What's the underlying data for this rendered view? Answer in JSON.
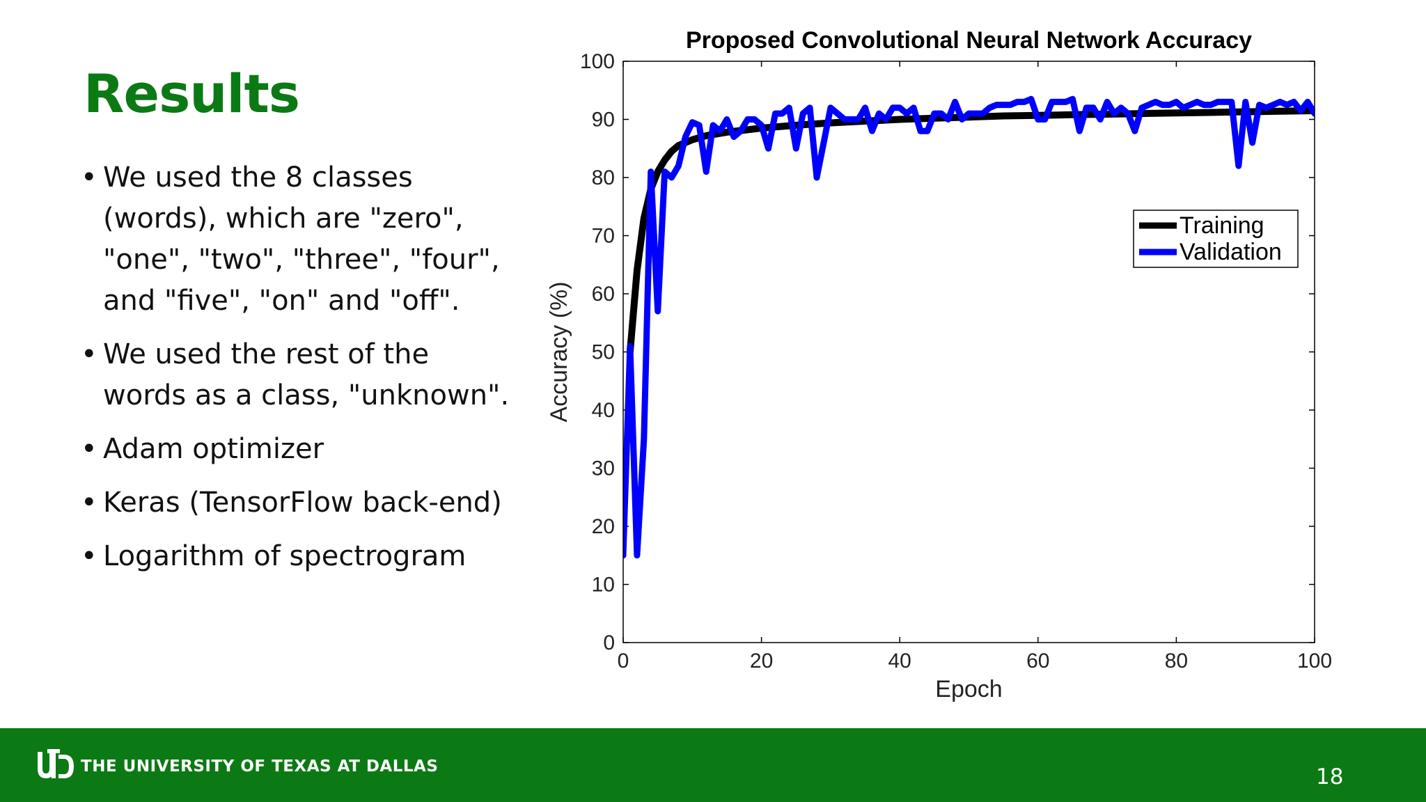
{
  "slide": {
    "title": "Results",
    "bullets": [
      "We used the 8 classes (words), which are \"zero\", \"one\", \"two\", \"three\", \"four\", and \"five\", \"on\" and \"off\".",
      "We used the rest of the words as a class, \"unknown\".",
      "Adam optimizer",
      "Keras (TensorFlow back-end)",
      "Logarithm of spectrogram"
    ],
    "bullet_symbol": "•"
  },
  "footer": {
    "university": "THE UNIVERSITY OF TEXAS AT DALLAS",
    "page_number": "18",
    "background_color": "#0b7a14"
  },
  "chart_data": {
    "type": "line",
    "title": "Proposed Convolutional Neural Network Accuracy",
    "xlabel": "Epoch",
    "ylabel": "Accuracy (%)",
    "xlim": [
      0,
      100
    ],
    "ylim": [
      0,
      100
    ],
    "xticks": [
      0,
      20,
      40,
      60,
      80,
      100
    ],
    "yticks": [
      0,
      10,
      20,
      30,
      40,
      50,
      60,
      70,
      80,
      90,
      100
    ],
    "grid": false,
    "legend_position": "upper-right",
    "series": [
      {
        "name": "Training",
        "color": "#000000",
        "x": [
          1,
          1.5,
          2,
          3,
          4,
          5,
          6,
          7,
          8,
          10,
          12,
          15,
          20,
          25,
          30,
          35,
          40,
          45,
          50,
          55,
          60,
          65,
          70,
          75,
          80,
          85,
          90,
          95,
          100
        ],
        "y": [
          50,
          57,
          64,
          73,
          78,
          81,
          83,
          84.5,
          85.5,
          86.5,
          87.2,
          87.8,
          88.5,
          89,
          89.4,
          89.7,
          90,
          90.2,
          90.4,
          90.6,
          90.7,
          90.8,
          90.9,
          91,
          91.1,
          91.2,
          91.3,
          91.4,
          91.5
        ]
      },
      {
        "name": "Validation",
        "color": "#0000ff",
        "x": [
          0,
          1,
          2,
          3,
          4,
          5,
          6,
          7,
          8,
          9,
          10,
          11,
          12,
          13,
          14,
          15,
          16,
          17,
          18,
          19,
          20,
          21,
          22,
          23,
          24,
          25,
          26,
          27,
          28,
          29,
          30,
          31,
          32,
          33,
          34,
          35,
          36,
          37,
          38,
          39,
          40,
          41,
          42,
          43,
          44,
          45,
          46,
          47,
          48,
          49,
          50,
          51,
          52,
          53,
          54,
          55,
          56,
          57,
          58,
          59,
          60,
          61,
          62,
          63,
          64,
          65,
          66,
          67,
          68,
          69,
          70,
          71,
          72,
          73,
          74,
          75,
          76,
          77,
          78,
          79,
          80,
          81,
          82,
          83,
          84,
          85,
          86,
          87,
          88,
          89,
          90,
          91,
          92,
          93,
          94,
          95,
          96,
          97,
          98,
          99,
          100
        ],
        "y": [
          15,
          51,
          15,
          35,
          81,
          57,
          81,
          80,
          82,
          87,
          89.5,
          89,
          81,
          89,
          88,
          90,
          87,
          88,
          90,
          90,
          89,
          85,
          91,
          91,
          92,
          85,
          91,
          92,
          80,
          86,
          92,
          91,
          90,
          90,
          90,
          92,
          88,
          91,
          90,
          92,
          92,
          91,
          92,
          88,
          88,
          91,
          91,
          90,
          93,
          90,
          91,
          91,
          91,
          92,
          92.5,
          92.5,
          92.5,
          93,
          93,
          93.5,
          90,
          90,
          93,
          93,
          93,
          93.5,
          88,
          92,
          92,
          90,
          93,
          91,
          92,
          91,
          88,
          92,
          92.5,
          93,
          92.5,
          92.5,
          93,
          92,
          92.5,
          93,
          92.5,
          92.5,
          93,
          93,
          93,
          82,
          93,
          86,
          92.5,
          92,
          92.5,
          93,
          92.5,
          93,
          91.5,
          93,
          91
        ]
      }
    ]
  }
}
